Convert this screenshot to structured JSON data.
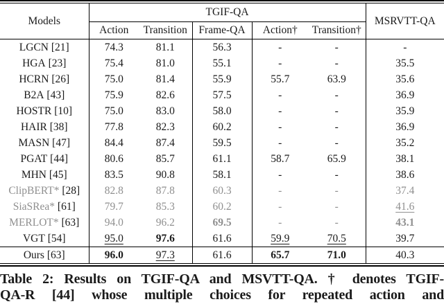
{
  "table": {
    "header": {
      "models_label": "Models",
      "tgif_group_label": "TGIF-QA",
      "msrvtt_label": "MSRVTT-QA",
      "sub_columns": [
        "Action",
        "Transition",
        "Frame-QA",
        "Action†",
        "Transition†"
      ]
    },
    "columns": [
      "Action",
      "Transition",
      "Frame-QA",
      "Action†",
      "Transition†",
      "MSRVTT-QA"
    ],
    "rows": [
      {
        "name": "LGCN",
        "cite": "[21]",
        "gray": false,
        "rule_above": false,
        "values": [
          "74.3",
          "81.1",
          "56.3",
          "-",
          "-",
          "-"
        ],
        "styles": [
          "",
          "",
          "",
          "",
          "",
          ""
        ]
      },
      {
        "name": "HGA",
        "cite": "[23]",
        "gray": false,
        "rule_above": false,
        "values": [
          "75.4",
          "81.0",
          "55.1",
          "-",
          "-",
          "35.5"
        ],
        "styles": [
          "",
          "",
          "",
          "",
          "",
          ""
        ]
      },
      {
        "name": "HCRN",
        "cite": "[26]",
        "gray": false,
        "rule_above": false,
        "values": [
          "75.0",
          "81.4",
          "55.9",
          "55.7",
          "63.9",
          "35.6"
        ],
        "styles": [
          "",
          "",
          "",
          "",
          "",
          ""
        ]
      },
      {
        "name": "B2A",
        "cite": "[43]",
        "gray": false,
        "rule_above": false,
        "values": [
          "75.9",
          "82.6",
          "57.5",
          "-",
          "-",
          "36.9"
        ],
        "styles": [
          "",
          "",
          "",
          "",
          "",
          ""
        ]
      },
      {
        "name": "HOSTR",
        "cite": "[10]",
        "gray": false,
        "rule_above": false,
        "values": [
          "75.0",
          "83.0",
          "58.0",
          "-",
          "-",
          "35.9"
        ],
        "styles": [
          "",
          "",
          "",
          "",
          "",
          ""
        ]
      },
      {
        "name": "HAIR",
        "cite": "[38]",
        "gray": false,
        "rule_above": false,
        "values": [
          "77.8",
          "82.3",
          "60.2",
          "-",
          "-",
          "36.9"
        ],
        "styles": [
          "",
          "",
          "",
          "",
          "",
          ""
        ]
      },
      {
        "name": "MASN",
        "cite": "[47]",
        "gray": false,
        "rule_above": false,
        "values": [
          "84.4",
          "87.4",
          "59.5",
          "-",
          "-",
          "35.2"
        ],
        "styles": [
          "",
          "",
          "",
          "",
          "",
          ""
        ]
      },
      {
        "name": "PGAT",
        "cite": "[44]",
        "gray": false,
        "rule_above": false,
        "values": [
          "80.6",
          "85.7",
          "61.1",
          "58.7",
          "65.9",
          "38.1"
        ],
        "styles": [
          "",
          "",
          "",
          "",
          "",
          ""
        ]
      },
      {
        "name": "MHN",
        "cite": "[45]",
        "gray": false,
        "rule_above": false,
        "values": [
          "83.5",
          "90.8",
          "58.1",
          "-",
          "-",
          "38.6"
        ],
        "styles": [
          "",
          "",
          "",
          "",
          "",
          ""
        ]
      },
      {
        "name": "ClipBERT*",
        "cite": "[28]",
        "gray": true,
        "rule_above": false,
        "values": [
          "82.8",
          "87.8",
          "60.3",
          "-",
          "-",
          "37.4"
        ],
        "styles": [
          "",
          "",
          "",
          "",
          "",
          ""
        ]
      },
      {
        "name": "SiaSRea*",
        "cite": "[61]",
        "gray": true,
        "rule_above": false,
        "values": [
          "79.7",
          "85.3",
          "60.2",
          "-",
          "-",
          "41.6"
        ],
        "styles": [
          "",
          "",
          "",
          "",
          "",
          "u"
        ]
      },
      {
        "name": "MERLOT*",
        "cite": "[63]",
        "gray": true,
        "rule_above": false,
        "values": [
          "94.0",
          "96.2",
          "69.5",
          "-",
          "-",
          "43.1"
        ],
        "styles": [
          "",
          "",
          "b",
          "",
          "",
          "b"
        ]
      },
      {
        "name": "VGT",
        "cite": "[54]",
        "gray": false,
        "rule_above": false,
        "values": [
          "95.0",
          "97.6",
          "61.6",
          "59.9",
          "70.5",
          "39.7"
        ],
        "styles": [
          "u",
          "b",
          "",
          "u",
          "u",
          ""
        ]
      },
      {
        "name": "Ours",
        "cite": "[63]",
        "gray": false,
        "rule_above": true,
        "values": [
          "96.0",
          "97.3",
          "61.6",
          "65.7",
          "71.0",
          "40.3"
        ],
        "styles": [
          "b",
          "u",
          "",
          "b",
          "b",
          ""
        ]
      }
    ]
  },
  "caption": {
    "line1": "Table 2: Results on TGIF-QA and MSVTT-QA. † denotes TGIF-",
    "line2": "QA-R [44] whose multiple choices for repeated action and"
  }
}
